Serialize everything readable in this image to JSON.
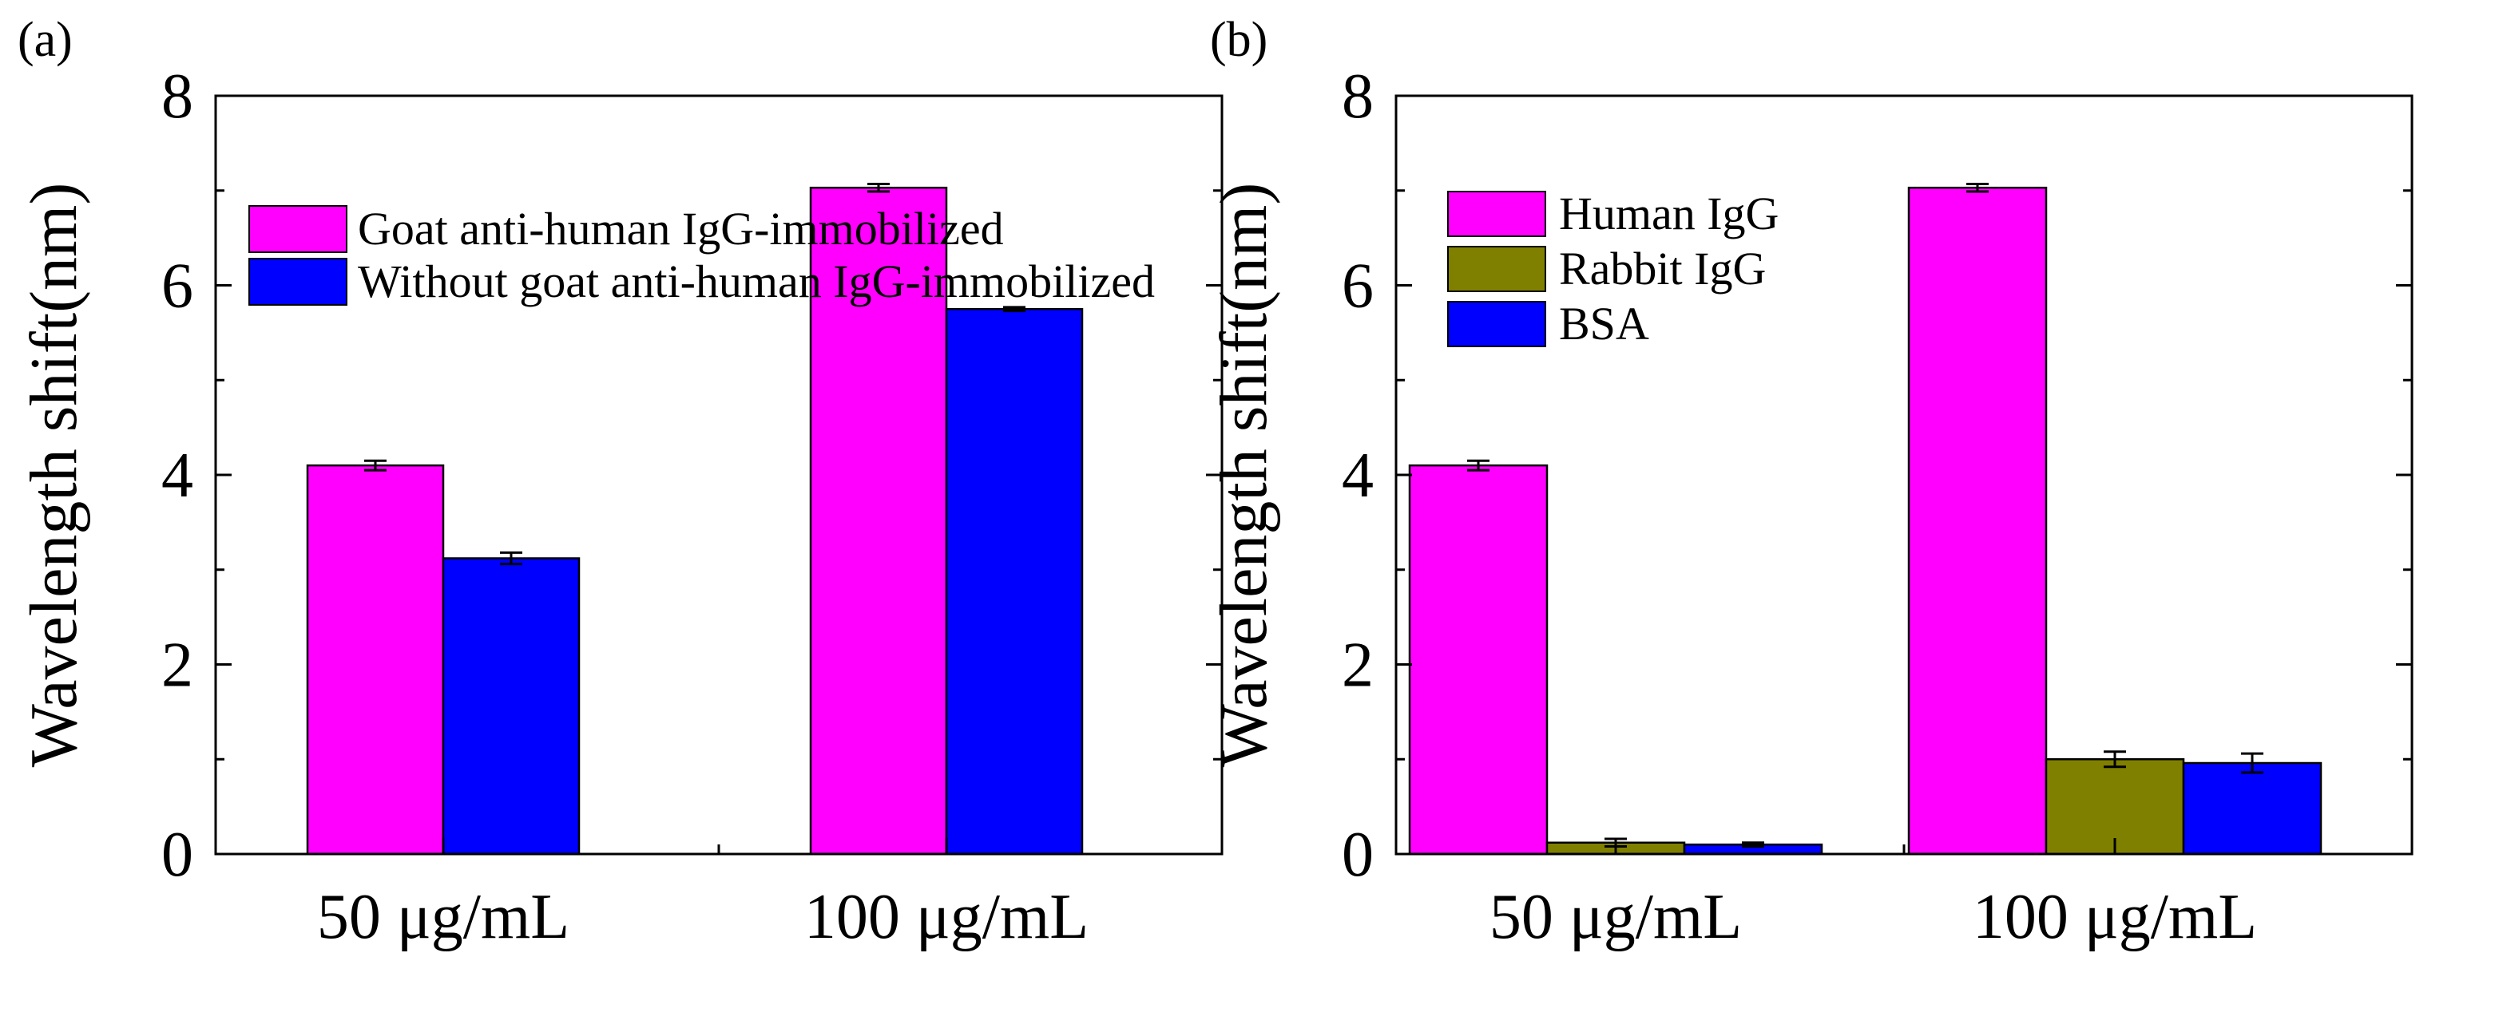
{
  "chart_data": [
    {
      "panel": "(a)",
      "type": "bar",
      "ylabel": "Wavelength shift(nm)",
      "xlabel": "",
      "ylim": [
        0,
        8
      ],
      "yticks": [
        "0",
        "2",
        "4",
        "6",
        "8"
      ],
      "categories": [
        "50 μg/mL",
        "100 μg/mL"
      ],
      "legend_position": "top-left",
      "series": [
        {
          "name": "Goat anti-human IgG-immobilized",
          "color": "#ff00ff",
          "values": [
            4.1,
            7.03
          ],
          "errors": [
            0.05,
            0.04
          ]
        },
        {
          "name": "Without goat anti-human IgG-immobilized",
          "color": "#0000ff",
          "values": [
            3.12,
            5.75
          ],
          "errors": [
            0.06,
            0.02
          ]
        }
      ]
    },
    {
      "panel": "(b)",
      "type": "bar",
      "ylabel": "Wavelength shift(nm)",
      "xlabel": "",
      "ylim": [
        0,
        8
      ],
      "yticks": [
        "0",
        "2",
        "4",
        "6",
        "8"
      ],
      "categories": [
        "50 μg/mL",
        "100 μg/mL"
      ],
      "legend_position": "top-left",
      "series": [
        {
          "name": "Human IgG",
          "color": "#ff00ff",
          "values": [
            4.1,
            7.03
          ],
          "errors": [
            0.05,
            0.04
          ]
        },
        {
          "name": "Rabbit IgG",
          "color": "#808000",
          "values": [
            0.12,
            1.0
          ],
          "errors": [
            0.04,
            0.08
          ]
        },
        {
          "name": "BSA",
          "color": "#0000ff",
          "values": [
            0.1,
            0.96
          ],
          "errors": [
            0.02,
            0.1
          ]
        }
      ]
    }
  ]
}
